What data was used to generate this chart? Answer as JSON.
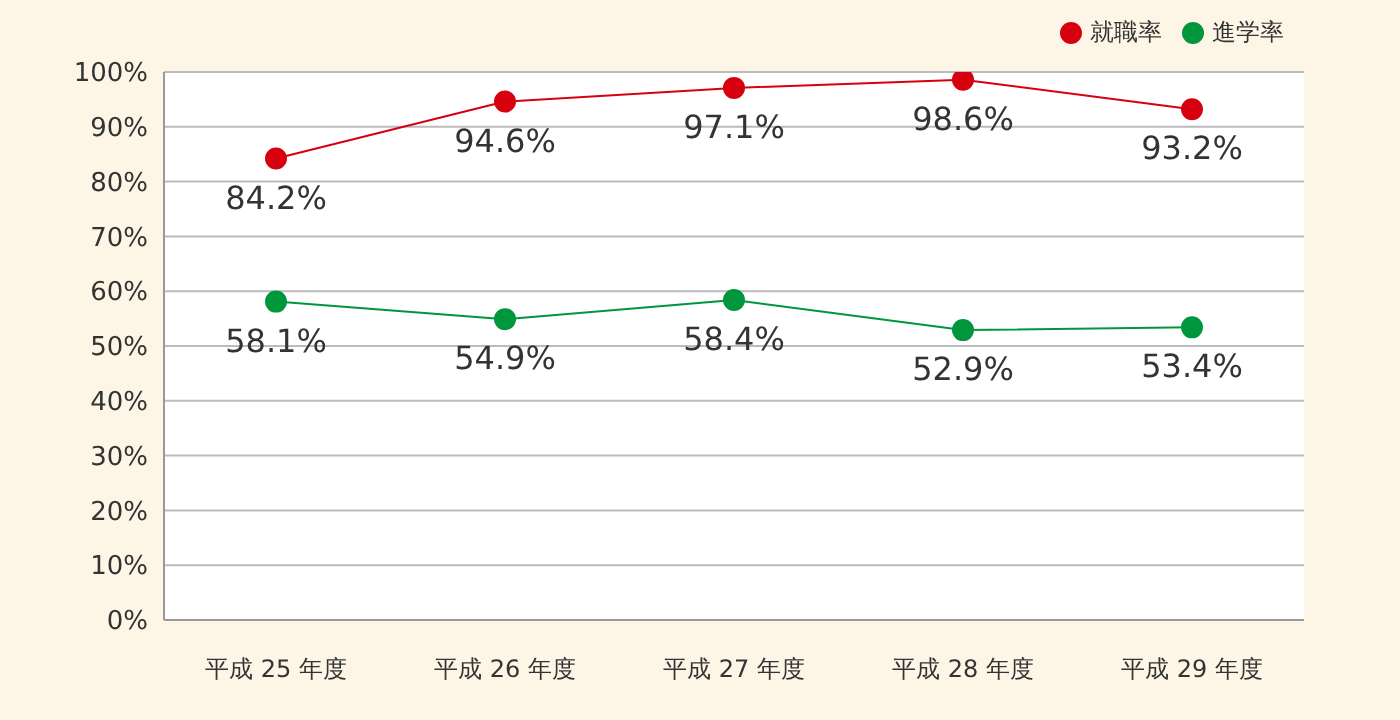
{
  "chart_data": {
    "type": "line",
    "categories": [
      "平成 25 年度",
      "平成 26 年度",
      "平成 27 年度",
      "平成 28 年度",
      "平成 29 年度"
    ],
    "series": [
      {
        "name": "進学率",
        "color": "#00963c",
        "values": [
          58.1,
          54.9,
          58.4,
          52.9,
          53.4
        ],
        "value_labels": [
          "58.1%",
          "54.9%",
          "58.4%",
          "52.9%",
          "53.4%"
        ]
      },
      {
        "name": "就職率",
        "color": "#d7000f",
        "values": [
          84.2,
          94.6,
          97.1,
          98.6,
          93.2
        ],
        "value_labels": [
          "84.2%",
          "94.6%",
          "97.1%",
          "98.6%",
          "93.2%"
        ]
      }
    ],
    "ylim": [
      0,
      100
    ],
    "yticks": [
      {
        "value": 0,
        "label": "0%"
      },
      {
        "value": 10,
        "label": "10%"
      },
      {
        "value": 20,
        "label": "20%"
      },
      {
        "value": 30,
        "label": "30%"
      },
      {
        "value": 40,
        "label": "40%"
      },
      {
        "value": 50,
        "label": "50%"
      },
      {
        "value": 60,
        "label": "60%"
      },
      {
        "value": 70,
        "label": "70%"
      },
      {
        "value": 80,
        "label": "80%"
      },
      {
        "value": 90,
        "label": "90%"
      },
      {
        "value": 100,
        "label": "100%"
      }
    ],
    "grid": "y",
    "legend": "top right",
    "marker": "circle",
    "line_style": "solid"
  }
}
